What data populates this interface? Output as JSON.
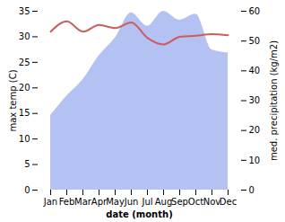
{
  "chart_data": {
    "type": "line",
    "categories": [
      "Jan",
      "Feb",
      "Mar",
      "Apr",
      "May",
      "Jun",
      "Jul",
      "Aug",
      "Sep",
      "Oct",
      "Nov",
      "Dec"
    ],
    "xlabel": "date (month)",
    "series": [
      {
        "name": "med. precipitation (kg/m2)",
        "type": "area",
        "axis": "y2",
        "color": "#b3c2f2",
        "values": [
          25,
          31.5,
          37,
          45,
          51,
          59.5,
          55,
          60,
          57,
          59,
          47,
          46
        ]
      },
      {
        "name": "max temp (C)",
        "type": "line",
        "color": "#cd5c5c",
        "values": [
          31,
          33,
          31,
          32.3,
          31.7,
          32.8,
          29.8,
          28.5,
          30,
          30.2,
          30.5,
          30.3
        ]
      }
    ],
    "ylim": [
      0,
      35
    ],
    "yticks": [
      0,
      5,
      10,
      15,
      20,
      25,
      30,
      35
    ],
    "y2lim": [
      0,
      60
    ],
    "y2ticks": [
      0,
      10,
      20,
      30,
      40,
      50,
      60
    ],
    "grid": false
  }
}
